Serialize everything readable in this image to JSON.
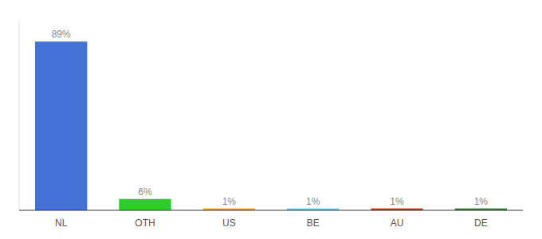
{
  "chart_data": {
    "type": "bar",
    "categories": [
      "NL",
      "OTH",
      "US",
      "BE",
      "AU",
      "DE"
    ],
    "values": [
      89,
      6,
      1,
      1,
      1,
      1
    ],
    "value_labels": [
      "89%",
      "6%",
      "1%",
      "1%",
      "1%",
      "1%"
    ],
    "colors": [
      "#4472d4",
      "#2ecc2e",
      "#e6a817",
      "#74c6e8",
      "#c0391b",
      "#3a7a3a"
    ],
    "ylim": [
      0,
      100
    ],
    "data_labels": true,
    "tick_labels": "x",
    "grid": false
  }
}
